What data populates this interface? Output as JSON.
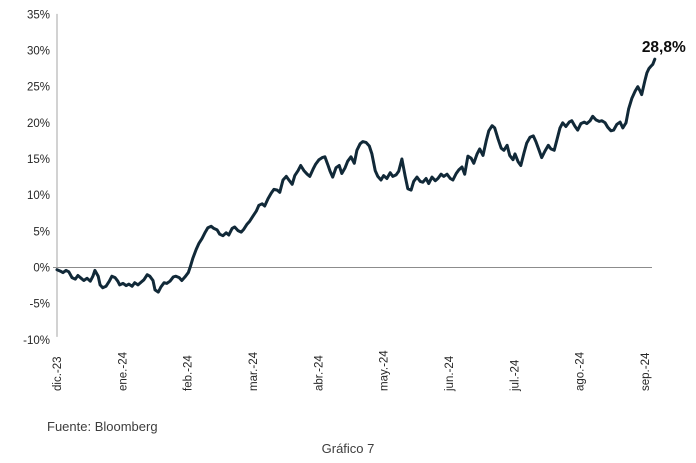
{
  "chart_data": {
    "type": "line",
    "title": "",
    "xlabel": "",
    "ylabel": "",
    "x_unit": "months since dic.-23",
    "x_tick_labels": [
      "dic.-23",
      "ene.-24",
      "feb.-24",
      "mar.-24",
      "abr.-24",
      "may.-24",
      "jun.-24",
      "jul.-24",
      "ago.-24",
      "sep.-24"
    ],
    "y_tick_labels": [
      "35%",
      "30%",
      "25%",
      "20%",
      "15%",
      "10%",
      "5%",
      "0%",
      "-5%",
      "-10%"
    ],
    "ylim": [
      -10,
      35
    ],
    "y_step": 5,
    "grid": "none",
    "legend": "none",
    "zero_line": true,
    "annotation": {
      "text": "28,8%",
      "x": 9.15,
      "y": 28.8
    },
    "series": [
      {
        "color": "#112938",
        "points": [
          [
            0.0,
            -0.3
          ],
          [
            0.05,
            -0.5
          ],
          [
            0.09,
            -0.7
          ],
          [
            0.14,
            -0.4
          ],
          [
            0.18,
            -0.6
          ],
          [
            0.23,
            -1.4
          ],
          [
            0.28,
            -1.6
          ],
          [
            0.32,
            -1.1
          ],
          [
            0.37,
            -1.5
          ],
          [
            0.41,
            -1.8
          ],
          [
            0.46,
            -1.5
          ],
          [
            0.51,
            -1.9
          ],
          [
            0.55,
            -1.2
          ],
          [
            0.58,
            -0.4
          ],
          [
            0.63,
            -1.2
          ],
          [
            0.66,
            -2.4
          ],
          [
            0.7,
            -2.8
          ],
          [
            0.75,
            -2.6
          ],
          [
            0.8,
            -1.9
          ],
          [
            0.84,
            -1.2
          ],
          [
            0.89,
            -1.4
          ],
          [
            0.93,
            -1.9
          ],
          [
            0.96,
            -2.4
          ],
          [
            1.01,
            -2.2
          ],
          [
            1.06,
            -2.5
          ],
          [
            1.1,
            -2.3
          ],
          [
            1.15,
            -2.6
          ],
          [
            1.19,
            -2.1
          ],
          [
            1.24,
            -2.4
          ],
          [
            1.29,
            -2.0
          ],
          [
            1.33,
            -1.7
          ],
          [
            1.38,
            -1.0
          ],
          [
            1.42,
            -1.2
          ],
          [
            1.47,
            -1.8
          ],
          [
            1.5,
            -3.1
          ],
          [
            1.55,
            -3.4
          ],
          [
            1.59,
            -2.7
          ],
          [
            1.64,
            -2.1
          ],
          [
            1.68,
            -2.2
          ],
          [
            1.73,
            -1.9
          ],
          [
            1.78,
            -1.3
          ],
          [
            1.82,
            -1.2
          ],
          [
            1.87,
            -1.4
          ],
          [
            1.91,
            -1.8
          ],
          [
            1.96,
            -1.3
          ],
          [
            2.01,
            -0.7
          ],
          [
            2.04,
            0.1
          ],
          [
            2.08,
            1.3
          ],
          [
            2.13,
            2.5
          ],
          [
            2.17,
            3.3
          ],
          [
            2.22,
            4.0
          ],
          [
            2.27,
            4.9
          ],
          [
            2.31,
            5.5
          ],
          [
            2.36,
            5.7
          ],
          [
            2.4,
            5.4
          ],
          [
            2.45,
            5.2
          ],
          [
            2.49,
            4.6
          ],
          [
            2.54,
            4.4
          ],
          [
            2.59,
            4.8
          ],
          [
            2.63,
            4.5
          ],
          [
            2.68,
            5.4
          ],
          [
            2.72,
            5.6
          ],
          [
            2.77,
            5.1
          ],
          [
            2.82,
            4.9
          ],
          [
            2.86,
            5.3
          ],
          [
            2.91,
            6.0
          ],
          [
            2.95,
            6.4
          ],
          [
            3.0,
            7.1
          ],
          [
            3.05,
            7.8
          ],
          [
            3.09,
            8.6
          ],
          [
            3.14,
            8.8
          ],
          [
            3.18,
            8.5
          ],
          [
            3.23,
            9.5
          ],
          [
            3.28,
            10.3
          ],
          [
            3.32,
            10.8
          ],
          [
            3.37,
            10.7
          ],
          [
            3.41,
            10.4
          ],
          [
            3.46,
            12.1
          ],
          [
            3.51,
            12.6
          ],
          [
            3.55,
            12.1
          ],
          [
            3.6,
            11.5
          ],
          [
            3.64,
            12.7
          ],
          [
            3.69,
            13.4
          ],
          [
            3.73,
            14.1
          ],
          [
            3.78,
            13.4
          ],
          [
            3.83,
            12.9
          ],
          [
            3.87,
            12.6
          ],
          [
            3.92,
            13.6
          ],
          [
            3.96,
            14.3
          ],
          [
            4.01,
            14.9
          ],
          [
            4.06,
            15.2
          ],
          [
            4.1,
            15.3
          ],
          [
            4.15,
            14.1
          ],
          [
            4.18,
            13.3
          ],
          [
            4.22,
            12.5
          ],
          [
            4.27,
            13.8
          ],
          [
            4.32,
            14.1
          ],
          [
            4.36,
            13.0
          ],
          [
            4.41,
            13.8
          ],
          [
            4.45,
            14.7
          ],
          [
            4.5,
            15.3
          ],
          [
            4.55,
            14.4
          ],
          [
            4.59,
            16.2
          ],
          [
            4.64,
            17.1
          ],
          [
            4.68,
            17.4
          ],
          [
            4.73,
            17.3
          ],
          [
            4.78,
            16.8
          ],
          [
            4.82,
            15.7
          ],
          [
            4.87,
            13.4
          ],
          [
            4.91,
            12.6
          ],
          [
            4.96,
            12.1
          ],
          [
            5.0,
            12.7
          ],
          [
            5.05,
            12.3
          ],
          [
            5.1,
            13.1
          ],
          [
            5.14,
            12.6
          ],
          [
            5.19,
            12.8
          ],
          [
            5.23,
            13.3
          ],
          [
            5.28,
            15.0
          ],
          [
            5.33,
            12.6
          ],
          [
            5.37,
            10.9
          ],
          [
            5.42,
            10.7
          ],
          [
            5.46,
            11.9
          ],
          [
            5.51,
            12.5
          ],
          [
            5.56,
            11.9
          ],
          [
            5.6,
            11.8
          ],
          [
            5.65,
            12.3
          ],
          [
            5.69,
            11.6
          ],
          [
            5.74,
            12.5
          ],
          [
            5.79,
            12.0
          ],
          [
            5.83,
            12.3
          ],
          [
            5.88,
            12.9
          ],
          [
            5.92,
            12.6
          ],
          [
            5.97,
            12.9
          ],
          [
            6.02,
            12.3
          ],
          [
            6.06,
            12.1
          ],
          [
            6.11,
            13.0
          ],
          [
            6.15,
            13.5
          ],
          [
            6.2,
            13.9
          ],
          [
            6.24,
            12.9
          ],
          [
            6.29,
            15.4
          ],
          [
            6.34,
            15.1
          ],
          [
            6.38,
            14.4
          ],
          [
            6.43,
            15.7
          ],
          [
            6.47,
            16.4
          ],
          [
            6.52,
            15.5
          ],
          [
            6.57,
            17.5
          ],
          [
            6.61,
            18.9
          ],
          [
            6.66,
            19.6
          ],
          [
            6.7,
            19.3
          ],
          [
            6.75,
            17.8
          ],
          [
            6.8,
            16.5
          ],
          [
            6.84,
            16.2
          ],
          [
            6.89,
            16.9
          ],
          [
            6.93,
            15.5
          ],
          [
            6.98,
            14.9
          ],
          [
            7.01,
            15.7
          ],
          [
            7.06,
            14.6
          ],
          [
            7.1,
            14.1
          ],
          [
            7.15,
            15.9
          ],
          [
            7.19,
            17.2
          ],
          [
            7.24,
            18.0
          ],
          [
            7.29,
            18.2
          ],
          [
            7.33,
            17.4
          ],
          [
            7.38,
            16.2
          ],
          [
            7.42,
            15.2
          ],
          [
            7.47,
            16.1
          ],
          [
            7.52,
            16.9
          ],
          [
            7.56,
            16.4
          ],
          [
            7.61,
            16.2
          ],
          [
            7.65,
            17.6
          ],
          [
            7.7,
            19.3
          ],
          [
            7.74,
            20.0
          ],
          [
            7.79,
            19.5
          ],
          [
            7.84,
            20.1
          ],
          [
            7.88,
            20.3
          ],
          [
            7.93,
            19.5
          ],
          [
            7.97,
            19.0
          ],
          [
            8.02,
            19.9
          ],
          [
            8.07,
            20.1
          ],
          [
            8.11,
            19.9
          ],
          [
            8.16,
            20.3
          ],
          [
            8.2,
            20.9
          ],
          [
            8.25,
            20.4
          ],
          [
            8.3,
            20.2
          ],
          [
            8.34,
            20.3
          ],
          [
            8.39,
            20.0
          ],
          [
            8.43,
            19.4
          ],
          [
            8.48,
            18.9
          ],
          [
            8.52,
            19.0
          ],
          [
            8.57,
            19.8
          ],
          [
            8.62,
            20.1
          ],
          [
            8.66,
            19.3
          ],
          [
            8.71,
            20.0
          ],
          [
            8.75,
            21.9
          ],
          [
            8.8,
            23.4
          ],
          [
            8.85,
            24.4
          ],
          [
            8.89,
            25.0
          ],
          [
            8.92,
            24.5
          ],
          [
            8.95,
            23.9
          ],
          [
            9.0,
            25.9
          ],
          [
            9.03,
            26.9
          ],
          [
            9.06,
            27.5
          ],
          [
            9.09,
            27.8
          ],
          [
            9.12,
            28.1
          ],
          [
            9.15,
            28.8
          ]
        ]
      }
    ]
  },
  "colors": {
    "line": "#112938",
    "axis": "#a6a6a6",
    "zero_line": "#8c8c8c",
    "tick_text": "#262626",
    "annotation_text": "#0d0d0d"
  },
  "footer": {
    "source": "Fuente: Bloomberg",
    "caption": "Gráfico 7"
  }
}
